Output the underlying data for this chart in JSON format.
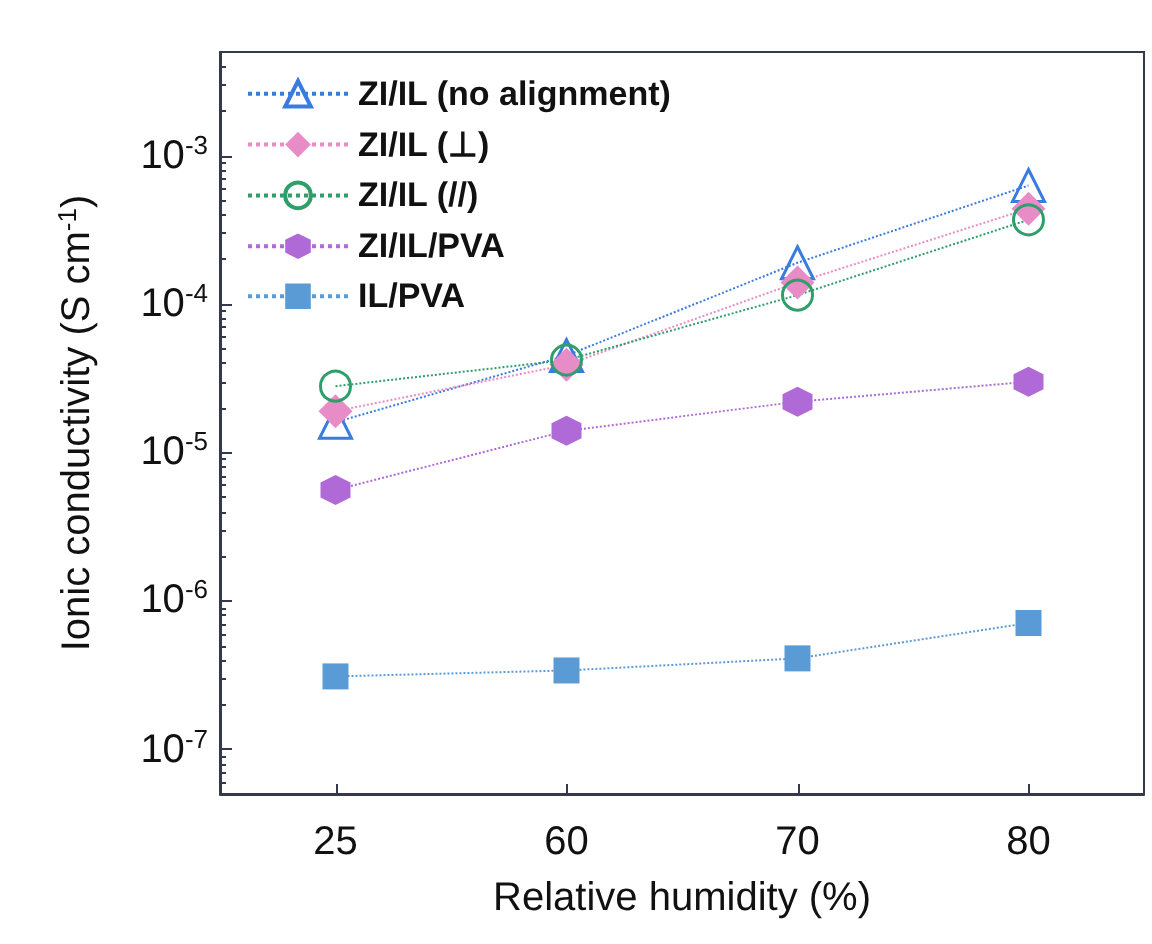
{
  "chart_data": {
    "type": "line",
    "xlabel": "Relative humidity (%)",
    "ylabel": "Ionic conductivity (S cm$^{-1}$)",
    "categories": [
      "25",
      "60",
      "70",
      "80"
    ],
    "log": "y",
    "ylim": [
      5e-08,
      0.005
    ],
    "yticks": [
      {
        "value": 1e-07,
        "label": "10$^{-7}$"
      },
      {
        "value": 1e-06,
        "label": "10$^{-6}$"
      },
      {
        "value": 1e-05,
        "label": "10$^{-5}$"
      },
      {
        "value": 0.0001,
        "label": "10$^{-4}$"
      },
      {
        "value": 0.001,
        "label": "10$^{-3}$"
      }
    ],
    "line_style": "dotted",
    "legend": "top left",
    "grid": false,
    "series": [
      {
        "name": "ZI/IL (no alignment)",
        "color": "#3a7be0",
        "marker": "triangle",
        "values": [
          1.6e-05,
          4.5e-05,
          0.00019,
          0.00063
        ]
      },
      {
        "name": "ZI/IL (⊥)",
        "color": "#e88cc8",
        "marker": "diamond",
        "values": [
          1.9e-05,
          3.9e-05,
          0.00014,
          0.00044
        ]
      },
      {
        "name": "ZI/IL (//)",
        "color": "#2e9e6a",
        "marker": "circle",
        "values": [
          2.8e-05,
          4.2e-05,
          0.000115,
          0.00037
        ]
      },
      {
        "name": "ZI/IL/PVA",
        "color": "#b06ad8",
        "marker": "circle",
        "values": [
          5.6e-06,
          1.4e-05,
          2.2e-05,
          3e-05
        ]
      },
      {
        "name": "IL/PVA",
        "color": "#5b9bd5",
        "marker": "square",
        "values": [
          3.1e-07,
          3.4e-07,
          4.1e-07,
          7.1e-07
        ]
      }
    ]
  }
}
